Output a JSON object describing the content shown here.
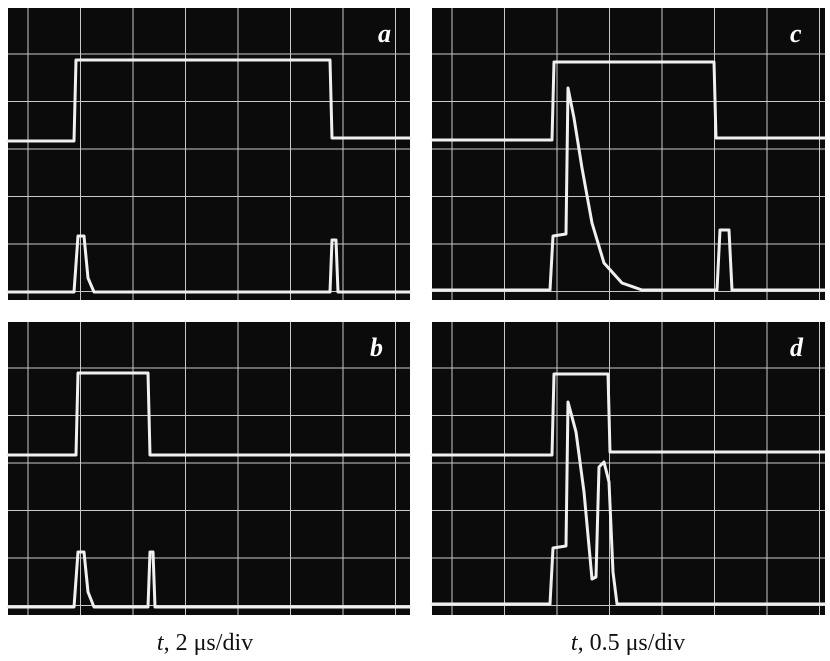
{
  "panels": [
    {
      "label": "a"
    },
    {
      "label": "b"
    },
    {
      "label": "c"
    },
    {
      "label": "d"
    }
  ],
  "captions": [
    {
      "variable": "t",
      "scale": ", 2 μs/div"
    },
    {
      "variable": "t",
      "scale": ", 0.5 μs/div"
    }
  ]
}
